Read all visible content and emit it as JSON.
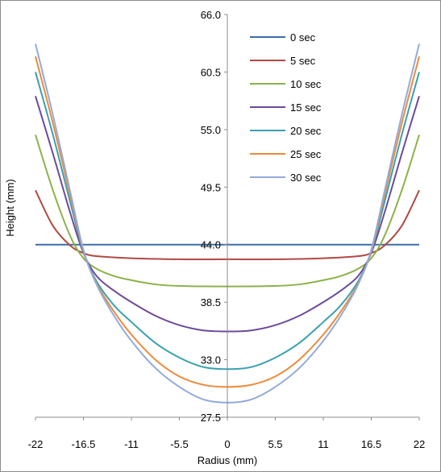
{
  "chart_data": {
    "type": "line",
    "title": "",
    "xlabel": "Radius (mm)",
    "ylabel": "Height (mm)",
    "xlim": [
      -22,
      22
    ],
    "ylim": [
      27.5,
      66.0
    ],
    "x_ticks": [
      "-22",
      "-16.5",
      "-11",
      "-5.5",
      "0",
      "5.5",
      "11",
      "16.5",
      "22"
    ],
    "y_ticks": [
      "66.0",
      "60.5",
      "55.0",
      "49.5",
      "44.0",
      "38.5",
      "33.0",
      "27.5"
    ],
    "grid": false,
    "legend_position": "top-right",
    "series": [
      {
        "name": "0 sec",
        "color": "#3a6ea8",
        "x": [
          -22,
          22
        ],
        "y": [
          44.0,
          44.0
        ]
      },
      {
        "name": "5 sec",
        "color": "#b04a44",
        "x": [
          -22,
          -20,
          -18,
          -16.5,
          -15,
          -11,
          -5.5,
          0,
          5.5,
          11,
          15,
          16.5,
          18,
          20,
          22
        ],
        "y": [
          49.2,
          45.8,
          43.9,
          43.2,
          42.9,
          42.7,
          42.6,
          42.6,
          42.6,
          42.7,
          42.9,
          43.2,
          43.9,
          45.8,
          49.2
        ]
      },
      {
        "name": "10 sec",
        "color": "#8db14a",
        "x": [
          -22,
          -20,
          -18,
          -16.5,
          -15,
          -13,
          -11,
          -8.25,
          -5.5,
          0,
          5.5,
          8.25,
          11,
          13,
          15,
          16.5,
          18,
          20,
          22
        ],
        "y": [
          54.5,
          49.2,
          44.8,
          42.7,
          41.7,
          41.0,
          40.6,
          40.2,
          40.05,
          40.0,
          40.05,
          40.2,
          40.6,
          41.0,
          41.7,
          42.7,
          44.8,
          49.2,
          54.5
        ]
      },
      {
        "name": "15 sec",
        "color": "#6b4a9c",
        "x": [
          -22,
          -20,
          -18,
          -16.5,
          -15,
          -13,
          -11,
          -8.25,
          -5.5,
          -2.75,
          0,
          2.75,
          5.5,
          8.25,
          11,
          13,
          15,
          16.5,
          18,
          20,
          22
        ],
        "y": [
          58.2,
          52.7,
          47.0,
          43.2,
          41.0,
          39.6,
          38.5,
          37.2,
          36.3,
          35.8,
          35.7,
          35.8,
          36.3,
          37.2,
          38.5,
          39.6,
          41.0,
          43.2,
          47.0,
          52.7,
          58.2
        ]
      },
      {
        "name": "20 sec",
        "color": "#3aa0b0",
        "x": [
          -22,
          -20,
          -18,
          -16.5,
          -15,
          -13,
          -11,
          -8.25,
          -5.5,
          -2.75,
          0,
          2.75,
          5.5,
          8.25,
          11,
          13,
          15,
          16.5,
          18,
          20,
          22
        ],
        "y": [
          60.5,
          54.5,
          48.0,
          43.3,
          40.5,
          38.2,
          36.6,
          34.6,
          33.2,
          32.3,
          32.1,
          32.3,
          33.2,
          34.6,
          36.6,
          38.2,
          40.5,
          43.3,
          48.0,
          54.5,
          60.5
        ]
      },
      {
        "name": "25 sec",
        "color": "#ee8a3a",
        "x": [
          -22,
          -20,
          -18,
          -16.5,
          -15,
          -13,
          -11,
          -8.25,
          -5.5,
          -2.75,
          0,
          2.75,
          5.5,
          8.25,
          11,
          13,
          15,
          16.5,
          18,
          20,
          22
        ],
        "y": [
          62.0,
          55.6,
          48.6,
          43.4,
          40.3,
          37.6,
          35.4,
          33.0,
          31.4,
          30.6,
          30.4,
          30.6,
          31.4,
          33.0,
          35.4,
          37.6,
          40.3,
          43.4,
          48.6,
          55.6,
          62.0
        ]
      },
      {
        "name": "30 sec",
        "color": "#93aad8",
        "x": [
          -22,
          -20,
          -18,
          -16.5,
          -15,
          -13,
          -11,
          -8.25,
          -5.5,
          -2.75,
          0,
          2.75,
          5.5,
          8.25,
          11,
          13,
          15,
          16.5,
          18,
          20,
          22
        ],
        "y": [
          63.2,
          56.4,
          49.0,
          43.5,
          40.2,
          37.2,
          34.8,
          32.2,
          30.4,
          29.2,
          28.9,
          29.2,
          30.4,
          32.2,
          34.8,
          37.2,
          40.2,
          43.5,
          49.0,
          56.4,
          63.2
        ]
      }
    ]
  }
}
